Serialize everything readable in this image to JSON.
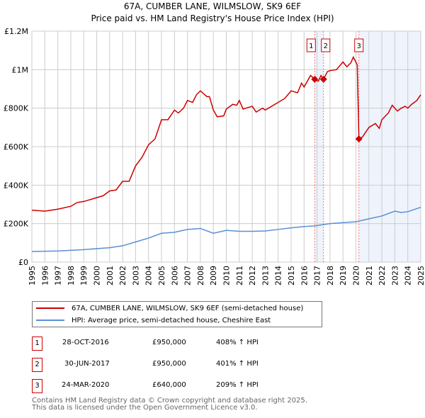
{
  "chart_data": {
    "type": "line",
    "title": "67A, CUMBER LANE, WILMSLOW, SK9 6EF",
    "subtitle": "Price paid vs. HM Land Registry's House Price Index (HPI)",
    "xlim": [
      1995,
      2025
    ],
    "ylim": [
      0,
      1200000
    ],
    "yticks": [
      {
        "v": 0,
        "label": "£0"
      },
      {
        "v": 200000,
        "label": "£200K"
      },
      {
        "v": 400000,
        "label": "£400K"
      },
      {
        "v": 600000,
        "label": "£600K"
      },
      {
        "v": 800000,
        "label": "£800K"
      },
      {
        "v": 1000000,
        "label": "£1M"
      },
      {
        "v": 1200000,
        "label": "£1.2M"
      }
    ],
    "xticks": [
      "1995",
      "1996",
      "1997",
      "1998",
      "1999",
      "2000",
      "2001",
      "2002",
      "2003",
      "2004",
      "2005",
      "2006",
      "2007",
      "2008",
      "2009",
      "2010",
      "2011",
      "2012",
      "2013",
      "2014",
      "2015",
      "2016",
      "2017",
      "2018",
      "2019",
      "2020",
      "2021",
      "2022",
      "2023",
      "2024",
      "2025"
    ],
    "grid": true,
    "shaded_ranges": [
      [
        2016.82,
        2017.5
      ],
      [
        2020.23,
        2025
      ]
    ],
    "series": [
      {
        "name": "67A, CUMBER LANE, WILMSLOW, SK9 6EF (semi-detached house)",
        "color": "#cc0000",
        "x": [
          1995,
          1996,
          1997,
          1998,
          1998.5,
          1999,
          2000,
          2000.5,
          2001,
          2001.5,
          2002,
          2002.5,
          2003,
          2003.5,
          2004,
          2004.5,
          2005,
          2005.5,
          2006,
          2006.3,
          2006.7,
          2007,
          2007.4,
          2007.7,
          2008,
          2008.5,
          2008.7,
          2009,
          2009.3,
          2009.8,
          2010,
          2010.5,
          2010.8,
          2011,
          2011.3,
          2011.5,
          2012,
          2012.3,
          2012.8,
          2013,
          2013.5,
          2014,
          2014.5,
          2015,
          2015.5,
          2015.8,
          2016,
          2016.5,
          2016.82,
          2017.1,
          2017.3,
          2017.5,
          2017.8,
          2018,
          2018.5,
          2019,
          2019.3,
          2019.6,
          2019.8,
          2020.1,
          2020.23,
          2020.5,
          2021,
          2021.5,
          2021.8,
          2022,
          2022.5,
          2022.8,
          2023,
          2023.2,
          2023.5,
          2023.8,
          2024,
          2024.3,
          2024.7,
          2025
        ],
        "y": [
          270000,
          265000,
          275000,
          290000,
          310000,
          315000,
          335000,
          345000,
          370000,
          375000,
          420000,
          420000,
          500000,
          545000,
          610000,
          640000,
          740000,
          740000,
          790000,
          775000,
          800000,
          840000,
          830000,
          870000,
          890000,
          860000,
          860000,
          790000,
          755000,
          760000,
          795000,
          820000,
          815000,
          840000,
          795000,
          800000,
          810000,
          780000,
          800000,
          790000,
          810000,
          830000,
          850000,
          890000,
          880000,
          930000,
          910000,
          970000,
          950000,
          940000,
          970000,
          950000,
          990000,
          995000,
          1000000,
          1040000,
          1015000,
          1035000,
          1065000,
          1025000,
          640000,
          650000,
          700000,
          720000,
          695000,
          740000,
          775000,
          815000,
          800000,
          785000,
          800000,
          810000,
          800000,
          820000,
          840000,
          870000
        ]
      },
      {
        "name": "HPI: Average price, semi-detached house, Cheshire East",
        "color": "#5b8fd4",
        "x": [
          1995,
          1997,
          1999,
          2001,
          2002,
          2003,
          2004,
          2005,
          2006,
          2007,
          2008,
          2009,
          2010,
          2011,
          2012,
          2013,
          2014,
          2015,
          2016,
          2016.8,
          2017.5,
          2018,
          2019,
          2020,
          2021,
          2022,
          2023,
          2023.5,
          2024,
          2025
        ],
        "y": [
          55000,
          58000,
          65000,
          75000,
          85000,
          105000,
          125000,
          150000,
          155000,
          170000,
          175000,
          150000,
          165000,
          160000,
          160000,
          162000,
          170000,
          178000,
          185000,
          188000,
          195000,
          200000,
          205000,
          210000,
          225000,
          240000,
          265000,
          258000,
          262000,
          285000
        ]
      }
    ],
    "sales": [
      {
        "id": "1",
        "x": 2016.82,
        "price": 950000,
        "date": "28-OCT-2016",
        "price_label": "£950,000",
        "hpi": "408% ↑ HPI"
      },
      {
        "id": "2",
        "x": 2017.5,
        "price": 950000,
        "date": "30-JUN-2017",
        "price_label": "£950,000",
        "hpi": "401% ↑ HPI"
      },
      {
        "id": "3",
        "x": 2020.23,
        "price": 640000,
        "date": "24-MAR-2020",
        "price_label": "£640,000",
        "hpi": "209% ↑ HPI"
      }
    ]
  },
  "footer": {
    "line1": "Contains HM Land Registry data © Crown copyright and database right 2025.",
    "line2": "This data is licensed under the Open Government Licence v3.0."
  }
}
